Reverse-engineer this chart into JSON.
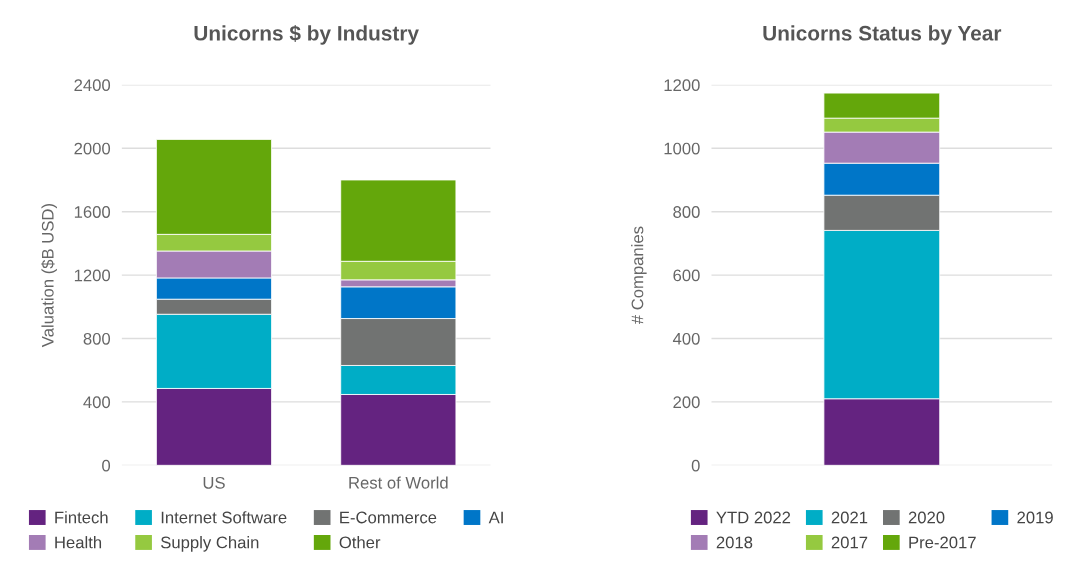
{
  "chart_data": [
    {
      "type": "bar",
      "title": "Unicorns $ by Industry",
      "ylabel": "Valuation ($B USD)",
      "categories": [
        "US",
        "Rest of World"
      ],
      "stacked": true,
      "ylim": [
        0,
        2400
      ],
      "yticks": [
        0,
        400,
        800,
        1200,
        1600,
        2000,
        2400
      ],
      "grid": "y",
      "legend": "bottom",
      "series": [
        {
          "name": "Fintech",
          "color": "#642380",
          "values": [
            485,
            447
          ]
        },
        {
          "name": "Internet Software",
          "color": "#00adc6",
          "values": [
            468,
            183
          ]
        },
        {
          "name": "E-Commerce",
          "color": "#717372",
          "values": [
            95,
            296
          ]
        },
        {
          "name": "AI",
          "color": "#0076c8",
          "values": [
            134,
            200
          ]
        },
        {
          "name": "Health",
          "color": "#a37cb5",
          "values": [
            170,
            44
          ]
        },
        {
          "name": "Supply Chain",
          "color": "#95c940",
          "values": [
            105,
            117
          ]
        },
        {
          "name": "Other",
          "color": "#64a70b",
          "values": [
            599,
            513
          ]
        }
      ]
    },
    {
      "type": "bar",
      "title": "Unicorns Status by Year",
      "ylabel": "# Companies",
      "categories": [
        null
      ],
      "stacked": true,
      "ylim": [
        0,
        1200
      ],
      "yticks": [
        0,
        200,
        400,
        600,
        800,
        1000,
        1200
      ],
      "grid": "y",
      "legend": "bottom",
      "series": [
        {
          "name": "YTD 2022",
          "color": "#642380",
          "values": [
            210
          ]
        },
        {
          "name": "2021",
          "color": "#00adc6",
          "values": [
            531
          ]
        },
        {
          "name": "2020",
          "color": "#717372",
          "values": [
            111
          ]
        },
        {
          "name": "2019",
          "color": "#0076c8",
          "values": [
            101
          ]
        },
        {
          "name": "2018",
          "color": "#a37cb5",
          "values": [
            98
          ]
        },
        {
          "name": "2017",
          "color": "#95c940",
          "values": [
            44
          ]
        },
        {
          "name": "Pre-2017",
          "color": "#64a70b",
          "values": [
            79
          ]
        }
      ]
    }
  ]
}
